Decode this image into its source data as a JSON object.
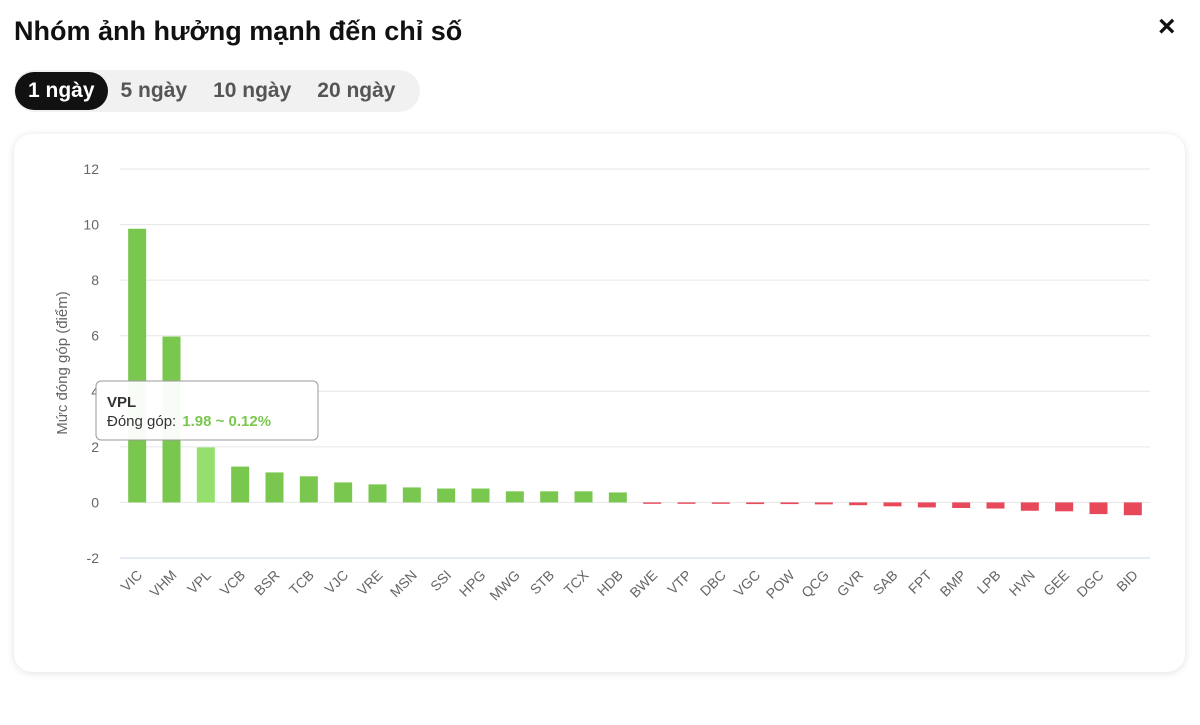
{
  "header": {
    "title": "Nhóm ảnh hưởng mạnh đến chỉ số",
    "close": "×"
  },
  "tabs": {
    "items": [
      "1 ngày",
      "5 ngày",
      "10 ngày",
      "20 ngày"
    ],
    "active": "1 ngày"
  },
  "chart_data": {
    "type": "bar",
    "y_label": "Mức đóng góp (điểm)",
    "categories": [
      "VIC",
      "VHM",
      "VPL",
      "VCB",
      "BSR",
      "TCB",
      "VJC",
      "VRE",
      "MSN",
      "SSI",
      "HPG",
      "MWG",
      "STB",
      "TCX",
      "HDB",
      "BWE",
      "VTP",
      "DBC",
      "VGC",
      "POW",
      "QCG",
      "GVR",
      "SAB",
      "FPT",
      "BMP",
      "LPB",
      "HVN",
      "GEE",
      "DGC",
      "BID"
    ],
    "values": [
      9.85,
      5.97,
      1.98,
      1.29,
      1.08,
      0.94,
      0.72,
      0.65,
      0.54,
      0.5,
      0.5,
      0.4,
      0.4,
      0.4,
      0.36,
      -0.05,
      -0.05,
      -0.05,
      -0.06,
      -0.06,
      -0.07,
      -0.1,
      -0.14,
      -0.18,
      -0.2,
      -0.22,
      -0.3,
      -0.32,
      -0.42,
      -0.46
    ],
    "positive_color": "#7ac74f",
    "negative_color": "#e8495a",
    "highlight_color": "#95e06c",
    "ylim": [
      -2,
      12
    ],
    "yticks": [
      -2,
      0,
      2,
      4,
      6,
      8,
      10,
      12
    ],
    "grid": true,
    "tooltip": {
      "title": "VPL",
      "label": "Đóng góp:",
      "value_label": "1.98 ~ 0.12%",
      "value_color": "#7ac74f"
    }
  }
}
